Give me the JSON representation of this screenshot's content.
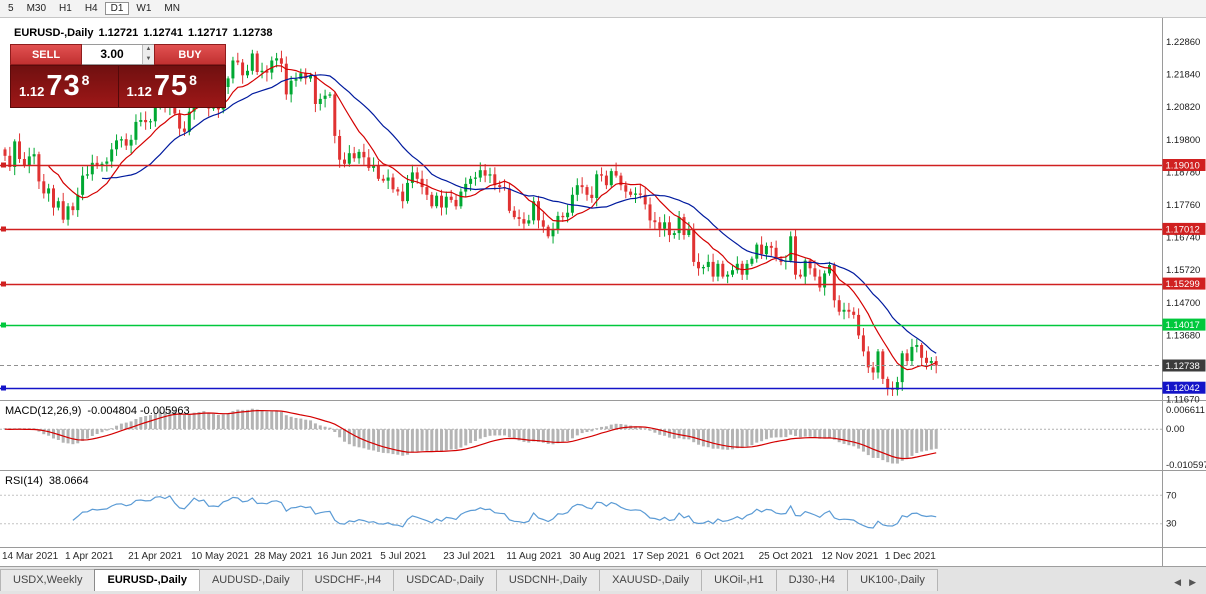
{
  "toolbar": {
    "timeframes": [
      "5",
      "M30",
      "H1",
      "H4",
      "D1",
      "W1",
      "MN"
    ],
    "active_timeframe": "D1"
  },
  "chart_header": {
    "symbol": "EURUSD-,Daily",
    "open": "1.12721",
    "high": "1.12741",
    "low": "1.12717",
    "close": "1.12738"
  },
  "trade_panel": {
    "sell_label": "SELL",
    "buy_label": "BUY",
    "volume": "3.00",
    "spinner_up": "▲",
    "spinner_down": "▼",
    "sell_price": {
      "prefix": "1.12",
      "big": "73",
      "sup": "8"
    },
    "buy_price": {
      "prefix": "1.12",
      "big": "75",
      "sup": "8"
    },
    "button_color": "#cf3535",
    "panel_color": "#8d1414"
  },
  "chart_data": {
    "type": "candlestick",
    "title": "EURUSD-,Daily",
    "candle_colors": {
      "up": "#00a832",
      "down": "#e03232"
    },
    "x_ticks": {
      "labels": [
        "14 Mar 2021",
        "1 Apr 2021",
        "21 Apr 2021",
        "10 May 2021",
        "28 May 2021",
        "16 Jun 2021",
        "5 Jul 2021",
        "23 Jul 2021",
        "11 Aug 2021",
        "30 Aug 2021",
        "17 Sep 2021",
        "6 Oct 2021",
        "25 Oct 2021",
        "12 Nov 2021",
        "1 Dec 2021"
      ],
      "indices": [
        0,
        13,
        26,
        39,
        52,
        65,
        78,
        91,
        104,
        117,
        130,
        143,
        156,
        169,
        182
      ]
    },
    "y_ticks": [
      {
        "value": 1.2286,
        "label": "1.22860"
      },
      {
        "value": 1.2184,
        "label": "1.21840"
      },
      {
        "value": 1.2082,
        "label": "1.20820"
      },
      {
        "value": 1.198,
        "label": "1.19800"
      },
      {
        "value": 1.1878,
        "label": "1.18780"
      },
      {
        "value": 1.1776,
        "label": "1.17760"
      },
      {
        "value": 1.1674,
        "label": "1.16740"
      },
      {
        "value": 1.1572,
        "label": "1.15720"
      },
      {
        "value": 1.147,
        "label": "1.14700"
      },
      {
        "value": 1.1368,
        "label": "1.13680"
      },
      {
        "value": 1.1167,
        "label": "1.11670"
      }
    ],
    "levels": [
      {
        "price": 1.1901,
        "label": "1.19010",
        "color": "#d02020"
      },
      {
        "price": 1.17012,
        "label": "1.17012",
        "color": "#d02020"
      },
      {
        "price": 1.15299,
        "label": "1.15299",
        "color": "#d02020"
      },
      {
        "price": 1.14017,
        "label": "1.14017",
        "color": "#00c83c"
      },
      {
        "price": 1.12042,
        "label": "1.12042",
        "color": "#1414c8"
      }
    ],
    "current_price": {
      "price": 1.12738,
      "label": "1.12738",
      "color": "#3c3c3c"
    },
    "moving_averages": [
      {
        "period": 10,
        "color": "#d40000"
      },
      {
        "period": 21,
        "color": "#001a9e"
      }
    ],
    "closes": [
      1.193,
      1.1895,
      1.1975,
      1.192,
      1.19,
      1.1928,
      1.1935,
      1.185,
      1.1812,
      1.1828,
      1.1768,
      1.1788,
      1.173,
      1.1772,
      1.176,
      1.1808,
      1.1868,
      1.1872,
      1.1908,
      1.1898,
      1.1905,
      1.1912,
      1.195,
      1.1978,
      1.1982,
      1.1962,
      1.198,
      1.2036,
      1.2042,
      1.2035,
      1.2038,
      1.2088,
      1.2095,
      1.2082,
      1.212,
      1.2062,
      1.2015,
      1.2005,
      1.2068,
      1.2162,
      1.213,
      1.2148,
      1.2078,
      1.2082,
      1.2075,
      1.2145,
      1.2172,
      1.2228,
      1.2222,
      1.2182,
      1.2196,
      1.225,
      1.2192,
      1.2196,
      1.219,
      1.2228,
      1.2235,
      1.2218,
      1.2122,
      1.2165,
      1.217,
      1.2188,
      1.2172,
      1.218,
      1.2092,
      1.2108,
      1.2118,
      1.2122,
      1.1992,
      1.1918,
      1.1905,
      1.1938,
      1.1922,
      1.1942,
      1.1925,
      1.1892,
      1.1898,
      1.1858,
      1.1852,
      1.1862,
      1.1825,
      1.1818,
      1.1788,
      1.1845,
      1.1878,
      1.1858,
      1.1832,
      1.1808,
      1.1772,
      1.1805,
      1.1768,
      1.1802,
      1.1792,
      1.1772,
      1.1818,
      1.1842,
      1.1858,
      1.1862,
      1.1885,
      1.1868,
      1.1872,
      1.1838,
      1.1832,
      1.1828,
      1.1758,
      1.1738,
      1.1732,
      1.1718,
      1.1728,
      1.1788,
      1.1728,
      1.1708,
      1.1678,
      1.1698,
      1.1742,
      1.1738,
      1.1752,
      1.1808,
      1.1838,
      1.1832,
      1.1808,
      1.1798,
      1.1872,
      1.1868,
      1.1838,
      1.1882,
      1.1868,
      1.1838,
      1.1818,
      1.1808,
      1.1812,
      1.1808,
      1.1778,
      1.1728,
      1.1722,
      1.1702,
      1.1722,
      1.1682,
      1.1688,
      1.1738,
      1.1682,
      1.1698,
      1.1598,
      1.1578,
      1.1582,
      1.1598,
      1.1552,
      1.1592,
      1.1552,
      1.1558,
      1.1572,
      1.1592,
      1.1558,
      1.1592,
      1.1608,
      1.1652,
      1.1622,
      1.1648,
      1.1642,
      1.1608,
      1.1598,
      1.1602,
      1.1678,
      1.1558,
      1.1552,
      1.1602,
      1.1578,
      1.1552,
      1.1518,
      1.1562,
      1.1588,
      1.1478,
      1.1442,
      1.1448,
      1.1442,
      1.1432,
      1.1368,
      1.1318,
      1.1268,
      1.1252,
      1.1318,
      1.1232,
      1.1202,
      1.1198,
      1.1222,
      1.1312,
      1.1288,
      1.1332,
      1.1338,
      1.1298,
      1.1282,
      1.1288,
      1.1274
    ]
  },
  "indicators": {
    "macd": {
      "title": "MACD(12,26,9)",
      "values": "-0.004804 -0.005963",
      "fast": 12,
      "slow": 26,
      "signal": 9,
      "scale_top": "0.006611",
      "scale_zero": "0.00",
      "scale_bottom": "-0.010597",
      "histogram_color": "#b4b4b4",
      "signal_color": "#d40000"
    },
    "rsi": {
      "title": "RSI(14)",
      "value": "38.0664",
      "period": 14,
      "level_labels": [
        "70",
        "30"
      ],
      "levels": [
        70,
        30
      ],
      "line_color": "#5b9bd5"
    }
  },
  "tabs": {
    "items": [
      {
        "label": "USDX,Weekly",
        "active": false
      },
      {
        "label": "EURUSD-,Daily",
        "active": true
      },
      {
        "label": "AUDUSD-,Daily",
        "active": false
      },
      {
        "label": "USDCHF-,H4",
        "active": false
      },
      {
        "label": "USDCAD-,Daily",
        "active": false
      },
      {
        "label": "USDCNH-,Daily",
        "active": false
      },
      {
        "label": "XAUUSD-,Daily",
        "active": false
      },
      {
        "label": "UKOil-,H1",
        "active": false
      },
      {
        "label": "DJ30-,H4",
        "active": false
      },
      {
        "label": "UK100-,Daily",
        "active": false
      }
    ],
    "scroll_left": "◀",
    "scroll_right": "▶"
  }
}
